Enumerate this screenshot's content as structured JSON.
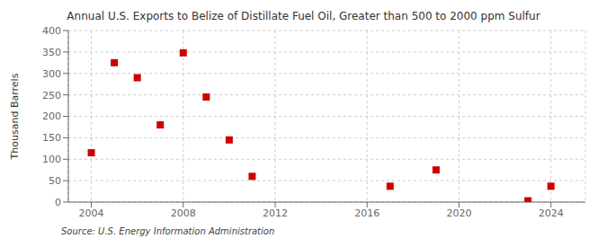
{
  "chart_data": {
    "type": "scatter",
    "title": "Annual U.S. Exports to Belize of Distillate Fuel Oil, Greater than 500 to 2000 ppm Sulfur",
    "ylabel": "Thousand Barrels",
    "annotations": [
      "Source: U.S. Energy Information Administration"
    ],
    "x": [
      2004,
      2005,
      2006,
      2007,
      2008,
      2009,
      2010,
      2011,
      2017,
      2019,
      2023,
      2024
    ],
    "values": [
      115,
      325,
      290,
      180,
      348,
      245,
      145,
      60,
      37,
      75,
      3,
      37
    ],
    "color": "#cc0000",
    "marker": "square",
    "xlim": [
      2003.0,
      2025.5
    ],
    "ylim": [
      0,
      400
    ],
    "xticks": [
      2004,
      2008,
      2012,
      2016,
      2020,
      2024
    ],
    "yticks": [
      0,
      50,
      100,
      150,
      200,
      250,
      300,
      350,
      400
    ],
    "grid": true
  }
}
